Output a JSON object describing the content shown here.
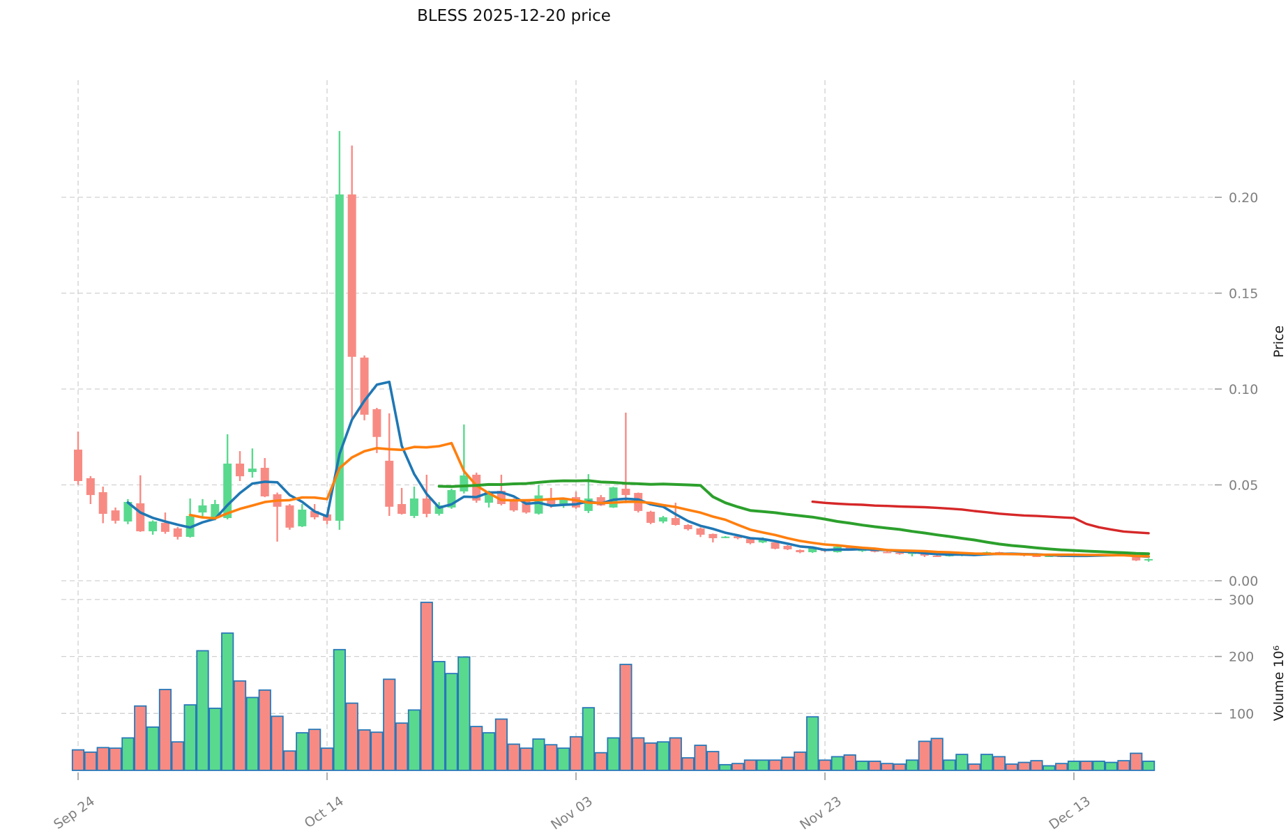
{
  "title": "BLESS  2025-12-20  price",
  "chart_data": {
    "type": "candlestick",
    "title": "BLESS  2025-12-20  price",
    "symbol": "BLESS",
    "as_of_date": "2025-12-20",
    "price_axis": {
      "label": "Price",
      "side": "right",
      "ticks": [
        "0.00",
        "0.05",
        "0.10",
        "0.15",
        "0.20"
      ],
      "tick_values": [
        0.0,
        0.05,
        0.1,
        0.15,
        0.2
      ],
      "ylim": [
        -0.003,
        0.253
      ],
      "grid": "dashed"
    },
    "volume_axis": {
      "label": "Volume  10⁶",
      "side": "right",
      "ticks": [
        "100",
        "200",
        "300"
      ],
      "tick_values": [
        100,
        200,
        300
      ],
      "ylim": [
        0,
        312
      ],
      "unit": "millions",
      "grid": "dashed"
    },
    "x_axis": {
      "tick_labels": [
        "Sep 24",
        "Oct 14",
        "Nov 03",
        "Nov 23",
        "Dec 13"
      ],
      "tick_indices": [
        0,
        20,
        40,
        60,
        80
      ],
      "label_rotation_deg": -35
    },
    "colors": {
      "up": "#59d98e",
      "down": "#f78b84",
      "volume_bar_edge": "#2878b8",
      "sma5": "#1f77b4",
      "sma10": "#ff7f0e",
      "sma30": "#2ca02c",
      "sma60": "#d62728",
      "grid": "#d0d0d0",
      "tick_text": "#7f7f7f",
      "background": "#ffffff"
    },
    "overlays": [
      {
        "name": "SMA-5",
        "window": 5,
        "color_key": "sma5",
        "width": 3.6
      },
      {
        "name": "SMA-10",
        "window": 10,
        "color_key": "sma10",
        "width": 3.6
      },
      {
        "name": "SMA-30",
        "window": 30,
        "color_key": "sma30",
        "width": 4.0
      },
      {
        "name": "SMA-60",
        "window": 60,
        "color_key": "sma60",
        "width": 3.4
      }
    ],
    "candles": [
      {
        "d": "2025-09-24",
        "o": 0.0684,
        "h": 0.0778,
        "l": 0.05,
        "c": 0.052,
        "v": 36
      },
      {
        "d": "2025-09-25",
        "o": 0.0535,
        "h": 0.0546,
        "l": 0.04,
        "c": 0.0447,
        "v": 32
      },
      {
        "d": "2025-09-26",
        "o": 0.0462,
        "h": 0.0491,
        "l": 0.03,
        "c": 0.0349,
        "v": 40
      },
      {
        "d": "2025-09-27",
        "o": 0.0367,
        "h": 0.0382,
        "l": 0.0298,
        "c": 0.0313,
        "v": 39
      },
      {
        "d": "2025-09-28",
        "o": 0.0309,
        "h": 0.0426,
        "l": 0.0295,
        "c": 0.0411,
        "v": 57
      },
      {
        "d": "2025-09-29",
        "o": 0.0404,
        "h": 0.055,
        "l": 0.0255,
        "c": 0.0258,
        "v": 113
      },
      {
        "d": "2025-09-30",
        "o": 0.0258,
        "h": 0.0315,
        "l": 0.024,
        "c": 0.0309,
        "v": 76
      },
      {
        "d": "2025-10-01",
        "o": 0.0302,
        "h": 0.0356,
        "l": 0.0245,
        "c": 0.0255,
        "v": 142
      },
      {
        "d": "2025-10-02",
        "o": 0.0273,
        "h": 0.028,
        "l": 0.0215,
        "c": 0.0229,
        "v": 50
      },
      {
        "d": "2025-10-03",
        "o": 0.0229,
        "h": 0.0429,
        "l": 0.0225,
        "c": 0.0338,
        "v": 115
      },
      {
        "d": "2025-10-04",
        "o": 0.0356,
        "h": 0.0426,
        "l": 0.0327,
        "c": 0.0393,
        "v": 210
      },
      {
        "d": "2025-10-05",
        "o": 0.0327,
        "h": 0.0422,
        "l": 0.0315,
        "c": 0.04,
        "v": 109
      },
      {
        "d": "2025-10-06",
        "o": 0.0327,
        "h": 0.0764,
        "l": 0.032,
        "c": 0.0611,
        "v": 241
      },
      {
        "d": "2025-10-07",
        "o": 0.0611,
        "h": 0.0676,
        "l": 0.052,
        "c": 0.0545,
        "v": 157
      },
      {
        "d": "2025-10-08",
        "o": 0.0567,
        "h": 0.069,
        "l": 0.0538,
        "c": 0.0585,
        "v": 128
      },
      {
        "d": "2025-10-09",
        "o": 0.0589,
        "h": 0.064,
        "l": 0.0436,
        "c": 0.044,
        "v": 141
      },
      {
        "d": "2025-10-10",
        "o": 0.0451,
        "h": 0.046,
        "l": 0.0204,
        "c": 0.0386,
        "v": 95
      },
      {
        "d": "2025-10-11",
        "o": 0.0393,
        "h": 0.04,
        "l": 0.0266,
        "c": 0.0277,
        "v": 34
      },
      {
        "d": "2025-10-12",
        "o": 0.0284,
        "h": 0.04,
        "l": 0.028,
        "c": 0.0371,
        "v": 66
      },
      {
        "d": "2025-10-13",
        "o": 0.0364,
        "h": 0.04,
        "l": 0.032,
        "c": 0.0331,
        "v": 72
      },
      {
        "d": "2025-10-14",
        "o": 0.0346,
        "h": 0.035,
        "l": 0.0295,
        "c": 0.0313,
        "v": 39
      },
      {
        "d": "2025-10-15",
        "o": 0.0313,
        "h": 0.2346,
        "l": 0.0266,
        "c": 0.2015,
        "v": 212
      },
      {
        "d": "2025-10-16",
        "o": 0.2015,
        "h": 0.227,
        "l": 0.084,
        "c": 0.1168,
        "v": 118
      },
      {
        "d": "2025-10-17",
        "o": 0.1164,
        "h": 0.1175,
        "l": 0.0837,
        "c": 0.0866,
        "v": 71
      },
      {
        "d": "2025-10-18",
        "o": 0.0895,
        "h": 0.0902,
        "l": 0.0666,
        "c": 0.075,
        "v": 67
      },
      {
        "d": "2025-10-19",
        "o": 0.0626,
        "h": 0.0873,
        "l": 0.0338,
        "c": 0.0386,
        "v": 160
      },
      {
        "d": "2025-10-20",
        "o": 0.04,
        "h": 0.0484,
        "l": 0.0345,
        "c": 0.0349,
        "v": 83
      },
      {
        "d": "2025-10-21",
        "o": 0.0338,
        "h": 0.0491,
        "l": 0.0327,
        "c": 0.0429,
        "v": 106
      },
      {
        "d": "2025-10-22",
        "o": 0.0429,
        "h": 0.0553,
        "l": 0.0331,
        "c": 0.0349,
        "v": 295
      },
      {
        "d": "2025-10-23",
        "o": 0.0349,
        "h": 0.041,
        "l": 0.034,
        "c": 0.0393,
        "v": 191
      },
      {
        "d": "2025-10-24",
        "o": 0.0382,
        "h": 0.048,
        "l": 0.0375,
        "c": 0.0473,
        "v": 170
      },
      {
        "d": "2025-10-25",
        "o": 0.0466,
        "h": 0.0815,
        "l": 0.0455,
        "c": 0.0549,
        "v": 199
      },
      {
        "d": "2025-10-26",
        "o": 0.0553,
        "h": 0.0564,
        "l": 0.0407,
        "c": 0.0418,
        "v": 77
      },
      {
        "d": "2025-10-27",
        "o": 0.0407,
        "h": 0.047,
        "l": 0.0382,
        "c": 0.0466,
        "v": 66
      },
      {
        "d": "2025-10-28",
        "o": 0.0469,
        "h": 0.0553,
        "l": 0.0393,
        "c": 0.04,
        "v": 90
      },
      {
        "d": "2025-10-29",
        "o": 0.0422,
        "h": 0.043,
        "l": 0.036,
        "c": 0.0367,
        "v": 46
      },
      {
        "d": "2025-10-30",
        "o": 0.0418,
        "h": 0.042,
        "l": 0.035,
        "c": 0.0356,
        "v": 39
      },
      {
        "d": "2025-10-31",
        "o": 0.035,
        "h": 0.05,
        "l": 0.0345,
        "c": 0.0445,
        "v": 55
      },
      {
        "d": "2025-11-01",
        "o": 0.042,
        "h": 0.0484,
        "l": 0.038,
        "c": 0.039,
        "v": 45
      },
      {
        "d": "2025-11-02",
        "o": 0.0393,
        "h": 0.0422,
        "l": 0.038,
        "c": 0.0422,
        "v": 39
      },
      {
        "d": "2025-11-03",
        "o": 0.0436,
        "h": 0.0465,
        "l": 0.0375,
        "c": 0.0382,
        "v": 59
      },
      {
        "d": "2025-11-04",
        "o": 0.0364,
        "h": 0.0556,
        "l": 0.0353,
        "c": 0.0429,
        "v": 110
      },
      {
        "d": "2025-11-05",
        "o": 0.0436,
        "h": 0.0447,
        "l": 0.039,
        "c": 0.0393,
        "v": 31
      },
      {
        "d": "2025-11-06",
        "o": 0.0382,
        "h": 0.049,
        "l": 0.038,
        "c": 0.0487,
        "v": 57
      },
      {
        "d": "2025-11-07",
        "o": 0.048,
        "h": 0.0877,
        "l": 0.0404,
        "c": 0.0447,
        "v": 186
      },
      {
        "d": "2025-11-08",
        "o": 0.0458,
        "h": 0.046,
        "l": 0.0356,
        "c": 0.0364,
        "v": 57
      },
      {
        "d": "2025-11-09",
        "o": 0.036,
        "h": 0.0365,
        "l": 0.0295,
        "c": 0.0302,
        "v": 48
      },
      {
        "d": "2025-11-10",
        "o": 0.0309,
        "h": 0.0338,
        "l": 0.03,
        "c": 0.0331,
        "v": 50
      },
      {
        "d": "2025-11-11",
        "o": 0.0327,
        "h": 0.0407,
        "l": 0.0288,
        "c": 0.0291,
        "v": 57
      },
      {
        "d": "2025-11-12",
        "o": 0.0291,
        "h": 0.0295,
        "l": 0.0262,
        "c": 0.0269,
        "v": 22
      },
      {
        "d": "2025-11-13",
        "o": 0.0273,
        "h": 0.0278,
        "l": 0.0228,
        "c": 0.024,
        "v": 44
      },
      {
        "d": "2025-11-14",
        "o": 0.0244,
        "h": 0.0246,
        "l": 0.02,
        "c": 0.0222,
        "v": 33
      },
      {
        "d": "2025-11-15",
        "o": 0.0228,
        "h": 0.0233,
        "l": 0.0222,
        "c": 0.023,
        "v": 10
      },
      {
        "d": "2025-11-16",
        "o": 0.0232,
        "h": 0.0236,
        "l": 0.0216,
        "c": 0.0222,
        "v": 12
      },
      {
        "d": "2025-11-17",
        "o": 0.0218,
        "h": 0.0222,
        "l": 0.019,
        "c": 0.0196,
        "v": 18
      },
      {
        "d": "2025-11-18",
        "o": 0.02,
        "h": 0.0226,
        "l": 0.0196,
        "c": 0.0218,
        "v": 18
      },
      {
        "d": "2025-11-19",
        "o": 0.02,
        "h": 0.0206,
        "l": 0.0164,
        "c": 0.0167,
        "v": 18
      },
      {
        "d": "2025-11-20",
        "o": 0.0182,
        "h": 0.0186,
        "l": 0.016,
        "c": 0.0164,
        "v": 23
      },
      {
        "d": "2025-11-21",
        "o": 0.016,
        "h": 0.0163,
        "l": 0.0144,
        "c": 0.0149,
        "v": 32
      },
      {
        "d": "2025-11-22",
        "o": 0.0149,
        "h": 0.0174,
        "l": 0.0145,
        "c": 0.0169,
        "v": 94
      },
      {
        "d": "2025-11-23",
        "o": 0.0165,
        "h": 0.017,
        "l": 0.015,
        "c": 0.0155,
        "v": 18
      },
      {
        "d": "2025-11-24",
        "o": 0.0149,
        "h": 0.018,
        "l": 0.0147,
        "c": 0.0178,
        "v": 24
      },
      {
        "d": "2025-11-25",
        "o": 0.0178,
        "h": 0.0181,
        "l": 0.0157,
        "c": 0.0162,
        "v": 27
      },
      {
        "d": "2025-11-26",
        "o": 0.0158,
        "h": 0.0166,
        "l": 0.015,
        "c": 0.0162,
        "v": 16
      },
      {
        "d": "2025-11-27",
        "o": 0.0162,
        "h": 0.0165,
        "l": 0.0148,
        "c": 0.0151,
        "v": 16
      },
      {
        "d": "2025-11-28",
        "o": 0.0151,
        "h": 0.0155,
        "l": 0.0144,
        "c": 0.0147,
        "v": 12
      },
      {
        "d": "2025-11-29",
        "o": 0.0147,
        "h": 0.015,
        "l": 0.0136,
        "c": 0.0142,
        "v": 11
      },
      {
        "d": "2025-11-30",
        "o": 0.0142,
        "h": 0.0153,
        "l": 0.0127,
        "c": 0.0147,
        "v": 18
      },
      {
        "d": "2025-12-01",
        "o": 0.0147,
        "h": 0.015,
        "l": 0.0124,
        "c": 0.0131,
        "v": 51
      },
      {
        "d": "2025-12-02",
        "o": 0.0131,
        "h": 0.0135,
        "l": 0.0124,
        "c": 0.0128,
        "v": 56
      },
      {
        "d": "2025-12-03",
        "o": 0.0128,
        "h": 0.0138,
        "l": 0.0126,
        "c": 0.0135,
        "v": 18
      },
      {
        "d": "2025-12-04",
        "o": 0.0131,
        "h": 0.0146,
        "l": 0.0128,
        "c": 0.0142,
        "v": 28
      },
      {
        "d": "2025-12-05",
        "o": 0.0142,
        "h": 0.0145,
        "l": 0.0131,
        "c": 0.0135,
        "v": 11
      },
      {
        "d": "2025-12-06",
        "o": 0.0135,
        "h": 0.0152,
        "l": 0.0133,
        "c": 0.0149,
        "v": 28
      },
      {
        "d": "2025-12-07",
        "o": 0.0149,
        "h": 0.0151,
        "l": 0.0137,
        "c": 0.0141,
        "v": 24
      },
      {
        "d": "2025-12-08",
        "o": 0.0141,
        "h": 0.0144,
        "l": 0.0134,
        "c": 0.0138,
        "v": 11
      },
      {
        "d": "2025-12-09",
        "o": 0.0138,
        "h": 0.0141,
        "l": 0.0127,
        "c": 0.0131,
        "v": 14
      },
      {
        "d": "2025-12-10",
        "o": 0.0131,
        "h": 0.0135,
        "l": 0.0124,
        "c": 0.0128,
        "v": 17
      },
      {
        "d": "2025-12-11",
        "o": 0.0128,
        "h": 0.0133,
        "l": 0.0126,
        "c": 0.0131,
        "v": 8
      },
      {
        "d": "2025-12-12",
        "o": 0.0131,
        "h": 0.0134,
        "l": 0.0123,
        "c": 0.0127,
        "v": 12
      },
      {
        "d": "2025-12-13",
        "o": 0.0127,
        "h": 0.0136,
        "l": 0.0125,
        "c": 0.0133,
        "v": 16
      },
      {
        "d": "2025-12-14",
        "o": 0.0133,
        "h": 0.0137,
        "l": 0.0127,
        "c": 0.0131,
        "v": 16
      },
      {
        "d": "2025-12-15",
        "o": 0.0131,
        "h": 0.0139,
        "l": 0.0128,
        "c": 0.0136,
        "v": 16
      },
      {
        "d": "2025-12-16",
        "o": 0.0136,
        "h": 0.014,
        "l": 0.0131,
        "c": 0.0138,
        "v": 14
      },
      {
        "d": "2025-12-17",
        "o": 0.0146,
        "h": 0.0149,
        "l": 0.0132,
        "c": 0.0135,
        "v": 17
      },
      {
        "d": "2025-12-18",
        "o": 0.0131,
        "h": 0.0134,
        "l": 0.0103,
        "c": 0.0106,
        "v": 30
      },
      {
        "d": "2025-12-19",
        "o": 0.0107,
        "h": 0.0116,
        "l": 0.0099,
        "c": 0.0113,
        "v": 16
      }
    ]
  }
}
